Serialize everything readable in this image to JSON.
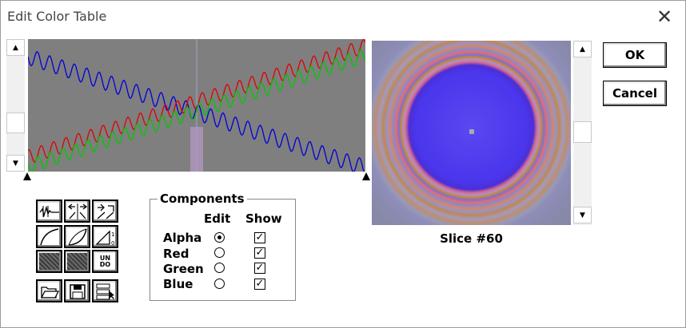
{
  "window": {
    "title": "Edit Color Table"
  },
  "components": {
    "legend": "Components",
    "edit_header": "Edit",
    "show_header": "Show",
    "rows": [
      {
        "label": "Alpha",
        "edit_selected": true,
        "show": true
      },
      {
        "label": "Red",
        "edit_selected": false,
        "show": true
      },
      {
        "label": "Green",
        "edit_selected": false,
        "show": true
      },
      {
        "label": "Blue",
        "edit_selected": false,
        "show": true
      }
    ]
  },
  "preview": {
    "caption": "Slice #60"
  },
  "buttons": {
    "ok": "OK",
    "cancel": "Cancel"
  },
  "tools": {
    "undo_line1": "UN",
    "undo_line2": "DO"
  },
  "colors": {
    "red": "#e00000",
    "green": "#00c800",
    "blue": "#0000d8",
    "graph_bg": "#7f7f7f"
  }
}
